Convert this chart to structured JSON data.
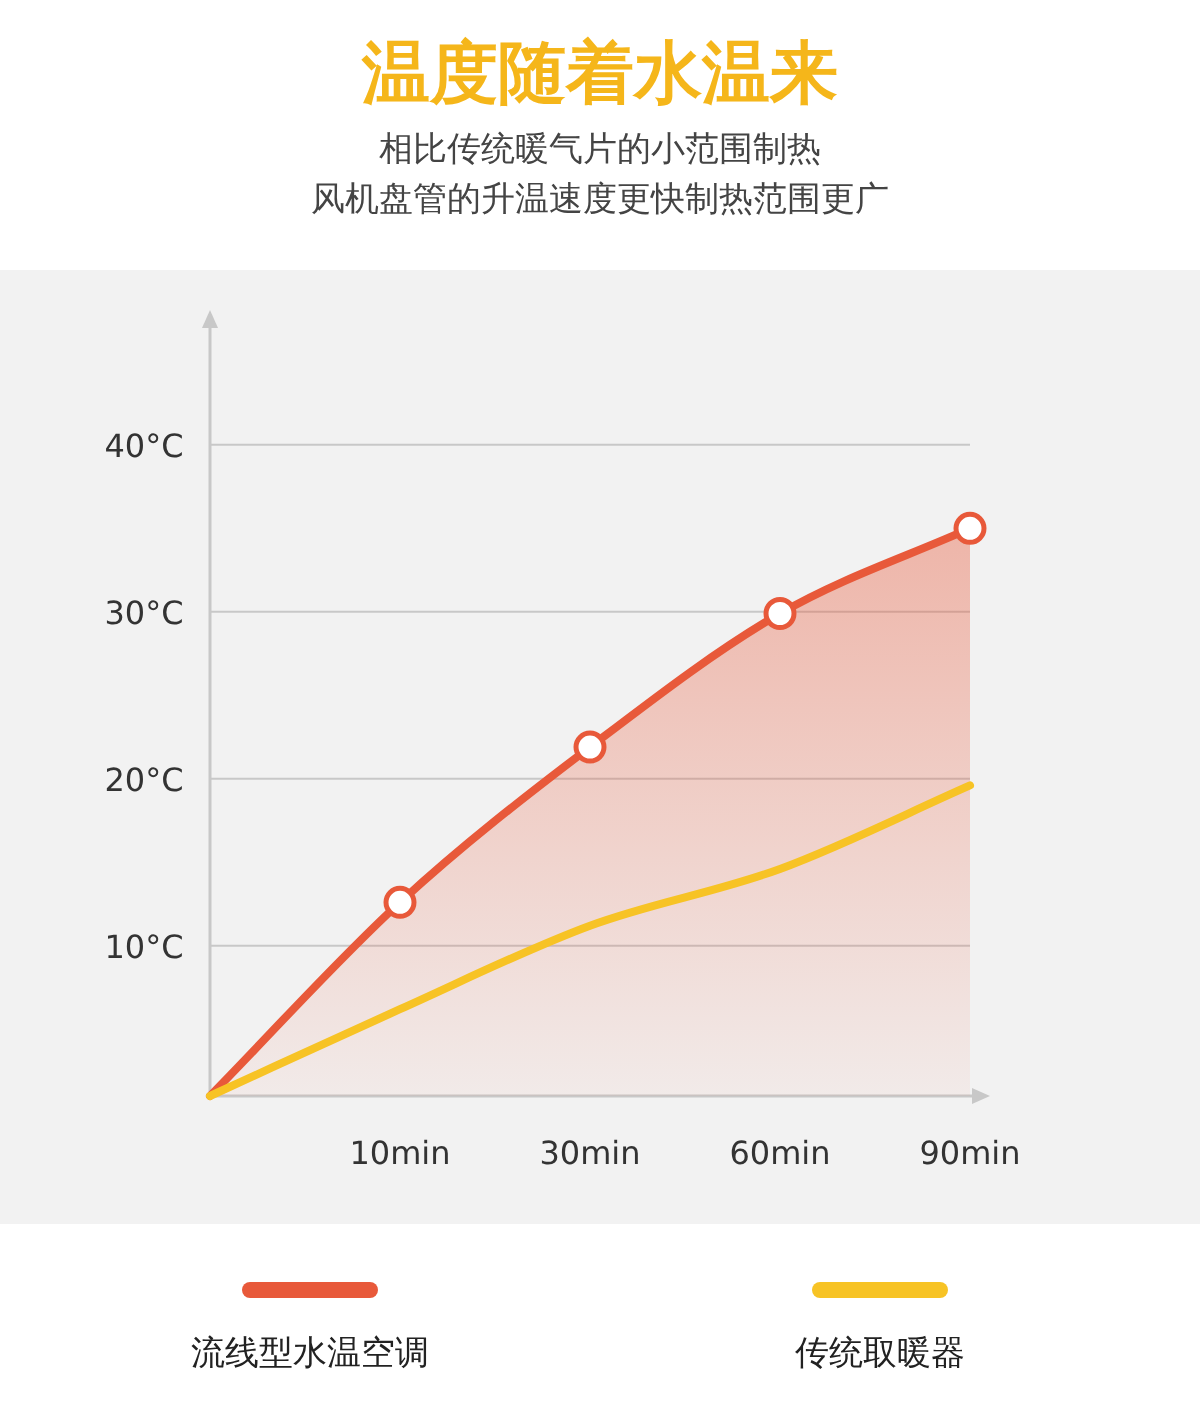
{
  "chart_data": {
    "type": "area",
    "title": "温度随着水温来",
    "subtitle": [
      "相比传统暖气片的小范围制热",
      "风机盘管的升温速度更快制热范围更广"
    ],
    "categories": [
      null,
      "10min",
      "30min",
      "60min",
      "90min"
    ],
    "series": [
      {
        "name": "流线型水温空调",
        "color": "#e8593a",
        "marker": "circle",
        "values": [
          1,
          12.6,
          21.9,
          29.9,
          35.0
        ]
      },
      {
        "name": "传统取暖器",
        "type": "line",
        "color": "#f7c325",
        "marker": "none",
        "values": [
          1,
          6.2,
          11.2,
          14.6,
          19.6
        ]
      }
    ],
    "ylim": [
      1,
      47
    ],
    "yticks": [
      {
        "value": 10,
        "label": "10°C"
      },
      {
        "value": 20,
        "label": "20°C"
      },
      {
        "value": 30,
        "label": "30°C"
      },
      {
        "value": 40,
        "label": "40°C"
      }
    ],
    "grid": "y",
    "legend": "bottom"
  }
}
